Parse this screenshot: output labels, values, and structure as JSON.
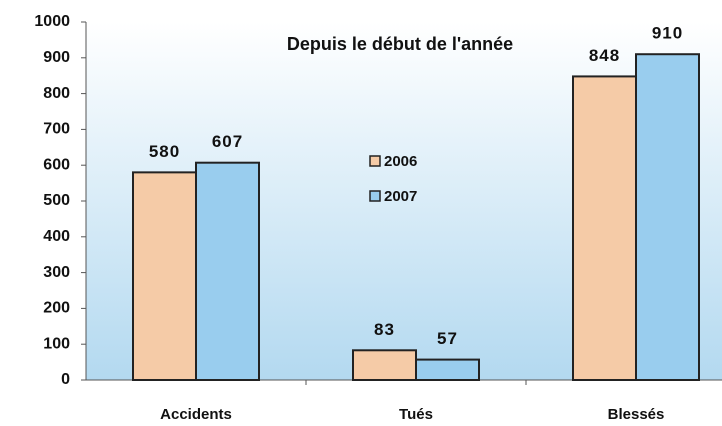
{
  "chart_data": {
    "type": "bar",
    "title": "Depuis le début de l'année",
    "categories": [
      "Accidents",
      "Tués",
      "Blessés"
    ],
    "series": [
      {
        "name": "2006",
        "color": "#f5cba7",
        "values": [
          580,
          83,
          848
        ]
      },
      {
        "name": "2007",
        "color": "#99cdee",
        "values": [
          607,
          57,
          910
        ]
      }
    ],
    "ylim": [
      0,
      1000
    ],
    "yticks": [
      0,
      100,
      200,
      300,
      400,
      500,
      600,
      700,
      800,
      900,
      1000
    ]
  }
}
